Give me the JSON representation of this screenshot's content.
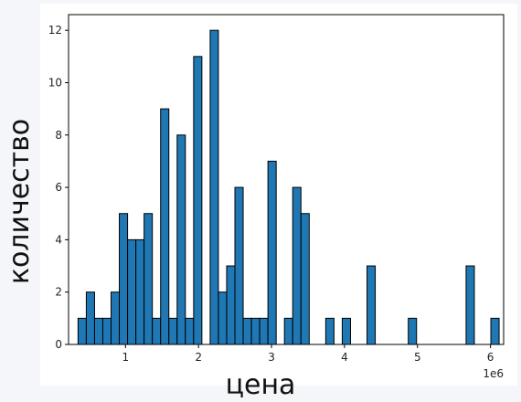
{
  "chart_data": {
    "type": "bar",
    "xlabel": "цена",
    "ylabel": "количество",
    "x_offset_label": "1e6",
    "xlim": [
      0.22,
      6.18
    ],
    "ylim": [
      0,
      12.6
    ],
    "xticks": [
      1,
      2,
      3,
      4,
      5,
      6
    ],
    "xtick_labels": [
      "1",
      "2",
      "3",
      "4",
      "5",
      "6"
    ],
    "yticks": [
      0,
      2,
      4,
      6,
      8,
      10,
      12
    ],
    "ytick_labels": [
      "0",
      "2",
      "4",
      "6",
      "8",
      "10",
      "12"
    ],
    "bin_start": 0.35,
    "bin_width": 0.1131,
    "values": [
      1,
      2,
      1,
      1,
      2,
      5,
      4,
      4,
      5,
      1,
      9,
      1,
      8,
      1,
      11,
      0,
      12,
      2,
      3,
      6,
      1,
      1,
      1,
      7,
      0,
      1,
      6,
      5,
      0,
      0,
      1,
      0,
      1,
      0,
      0,
      3,
      0,
      0,
      0,
      0,
      1,
      0,
      0,
      0,
      0,
      0,
      0,
      3,
      0,
      0,
      1
    ],
    "bar_color": "#1f77b4",
    "edge_color": "#000000",
    "grid": false
  }
}
